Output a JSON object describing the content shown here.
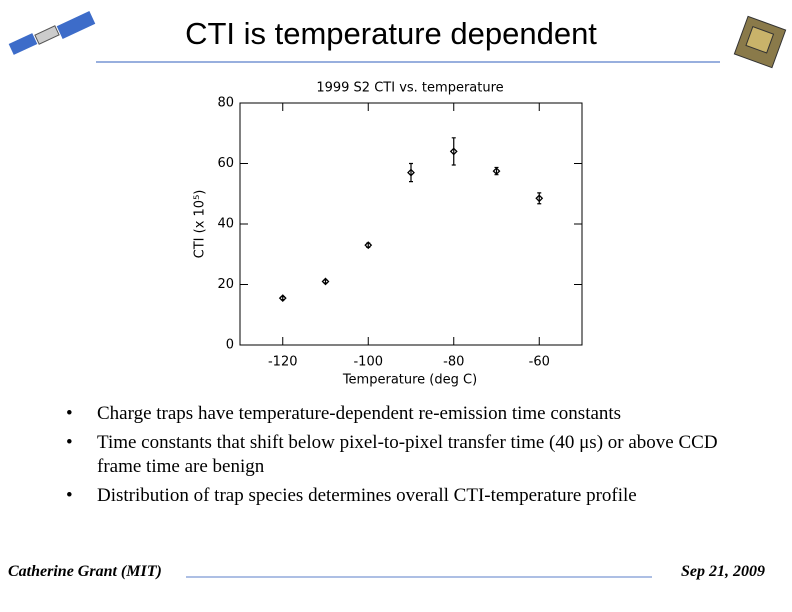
{
  "slide": {
    "title": "CTI is temperature dependent",
    "bullets": [
      "Charge traps have temperature-dependent re-emission time constants",
      "Time constants that shift below pixel-to-pixel transfer time (40 μs) or above CCD frame time are benign",
      "Distribution of trap species determines overall CTI-temperature profile"
    ],
    "footer_left": "Catherine Grant (MIT)",
    "footer_right": "Sep 21, 2009"
  },
  "chart_data": {
    "type": "scatter",
    "title": "1999 S2 CTI vs. temperature",
    "xlabel": "Temperature (deg C)",
    "ylabel": "CTI (x 10⁵)",
    "x": [
      -120,
      -110,
      -100,
      -90,
      -80,
      -70,
      -60
    ],
    "values": [
      15.5,
      21,
      33,
      57,
      64,
      57.5,
      48.5
    ],
    "errors": [
      0.5,
      0.5,
      0.7,
      3,
      4.5,
      1.2,
      1.8
    ],
    "color": "#000000",
    "xlim": [
      -130,
      -50
    ],
    "xticks": [
      -120,
      -100,
      -80,
      -60
    ],
    "ylim": [
      0,
      80
    ],
    "yticks": [
      0,
      20,
      40,
      60,
      80
    ]
  }
}
